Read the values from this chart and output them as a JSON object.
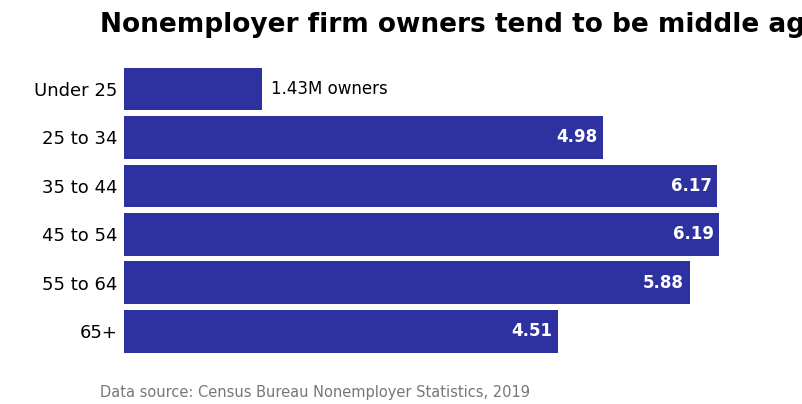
{
  "title": "Nonemployer firm owners tend to be middle aged",
  "categories": [
    "Under 25",
    "25 to 34",
    "35 to 44",
    "45 to 54",
    "55 to 64",
    "65+"
  ],
  "values": [
    1.43,
    4.98,
    6.17,
    6.19,
    5.88,
    4.51
  ],
  "bar_color": "#2E32A0",
  "labels": [
    "1.43M owners",
    "4.98",
    "6.17",
    "6.19",
    "5.88",
    "4.51"
  ],
  "label_colors": [
    "#000000",
    "#ffffff",
    "#ffffff",
    "#ffffff",
    "#ffffff",
    "#ffffff"
  ],
  "label_inside": [
    false,
    true,
    true,
    true,
    true,
    true
  ],
  "source_text": "Data source: Census Bureau Nonemployer Statistics, 2019",
  "xlim": [
    0,
    6.8
  ],
  "title_fontsize": 19,
  "label_fontsize": 12,
  "category_fontsize": 13,
  "source_fontsize": 10.5,
  "bar_height": 0.88
}
